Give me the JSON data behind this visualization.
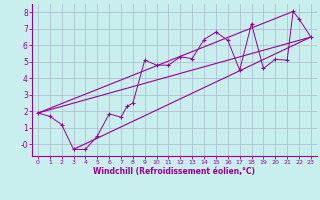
{
  "title": "",
  "xlabel": "Windchill (Refroidissement éolien,°C)",
  "bg_color": "#c8eeee",
  "plot_bg_color": "#c8eeee",
  "line_color": "#990099",
  "grid_color": "#aabbcc",
  "xlim": [
    -0.5,
    23.5
  ],
  "ylim": [
    -0.7,
    8.5
  ],
  "xticks": [
    0,
    1,
    2,
    3,
    4,
    5,
    6,
    7,
    8,
    9,
    10,
    11,
    12,
    13,
    14,
    15,
    16,
    17,
    18,
    19,
    20,
    21,
    22,
    23
  ],
  "yticks": [
    0,
    1,
    2,
    3,
    4,
    5,
    6,
    7,
    8
  ],
  "ytick_labels": [
    "-0",
    "1",
    "2",
    "3",
    "4",
    "5",
    "6",
    "7",
    "8"
  ],
  "scatter": [
    [
      0,
      1.9
    ],
    [
      1,
      1.7
    ],
    [
      2,
      1.2
    ],
    [
      3,
      -0.3
    ],
    [
      4,
      -0.3
    ],
    [
      5,
      0.5
    ],
    [
      6,
      1.85
    ],
    [
      7,
      1.65
    ],
    [
      7.5,
      2.3
    ],
    [
      8,
      2.5
    ],
    [
      9,
      5.1
    ],
    [
      10,
      4.8
    ],
    [
      11,
      4.8
    ],
    [
      12,
      5.3
    ],
    [
      13,
      5.2
    ],
    [
      14,
      6.35
    ],
    [
      15,
      6.8
    ],
    [
      16,
      6.3
    ],
    [
      17,
      4.5
    ],
    [
      18,
      7.3
    ],
    [
      19,
      4.6
    ],
    [
      20,
      5.15
    ],
    [
      21,
      5.1
    ],
    [
      21.5,
      8.05
    ],
    [
      22,
      7.6
    ],
    [
      23,
      6.5
    ]
  ],
  "line1": [
    [
      0,
      1.9
    ],
    [
      23,
      6.5
    ]
  ],
  "line2": [
    [
      3,
      -0.3
    ],
    [
      23,
      6.5
    ]
  ],
  "line3": [
    [
      0,
      1.9
    ],
    [
      21.5,
      8.05
    ]
  ]
}
